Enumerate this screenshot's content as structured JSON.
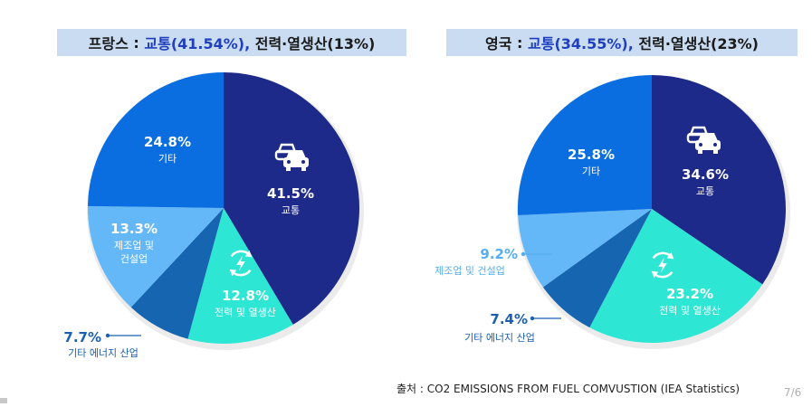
{
  "titles": {
    "left": {
      "country": "프랑스",
      "separator": " : ",
      "highlight": "교통(41.54%),",
      "rest": " 전력·열생산(13%)"
    },
    "right": {
      "country": "영국",
      "separator": " : ",
      "highlight": "교통(34.55%),",
      "rest": " 전력·열생산(23%)"
    }
  },
  "chart_data": [
    {
      "type": "pie",
      "title": "프랑스 : 교통(41.54%), 전력·열생산(13%)",
      "slices": [
        {
          "label": "교통",
          "value": 41.5,
          "value_label": "41.5%",
          "color": "#1e2a8a",
          "icon": "cars-icon"
        },
        {
          "label": "전력 및 열생산",
          "value": 12.8,
          "value_label": "12.8%",
          "color": "#2ee6d4",
          "icon": "recycle-power-icon"
        },
        {
          "label": "기타 에너지 산업",
          "value": 7.7,
          "value_label": "7.7%",
          "color": "#1565b0"
        },
        {
          "label": "제조업 및 건설업",
          "value": 13.3,
          "value_label": "13.3%",
          "color": "#64b8f8"
        },
        {
          "label": "기타",
          "value": 24.8,
          "value_label": "24.8%",
          "color": "#0a6de0"
        }
      ]
    },
    {
      "type": "pie",
      "title": "영국 : 교통(34.55%), 전력·열생산(23%)",
      "slices": [
        {
          "label": "교통",
          "value": 34.6,
          "value_label": "34.6%",
          "color": "#1e2a8a",
          "icon": "cars-icon"
        },
        {
          "label": "전력 및 열생산",
          "value": 23.2,
          "value_label": "23.2%",
          "color": "#2ee6d4",
          "icon": "recycle-power-icon"
        },
        {
          "label": "기타 에너지 산업",
          "value": 7.4,
          "value_label": "7.4%",
          "color": "#1565b0"
        },
        {
          "label": "제조업 및 건설업",
          "value": 9.2,
          "value_label": "9.2%",
          "color": "#64b8f8"
        },
        {
          "label": "기타",
          "value": 25.8,
          "value_label": "25.8%",
          "color": "#0a6de0"
        }
      ]
    }
  ],
  "source": "출처 : CO2 EMISSIONS FROM FUEL COMVUSTION (IEA Statistics)",
  "page_number": "7/6"
}
